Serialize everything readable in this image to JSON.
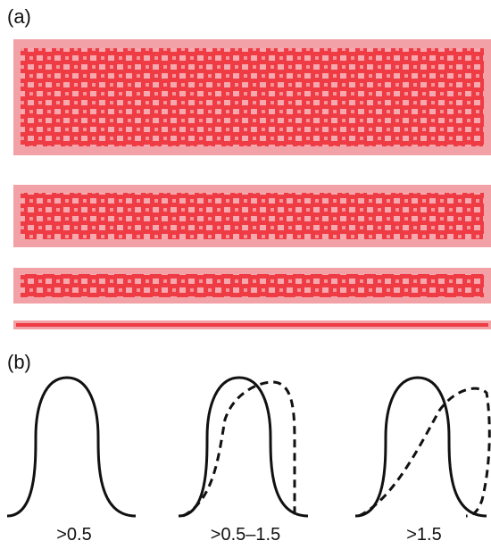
{
  "panel_a": {
    "label": "(a)"
  },
  "panel_b": {
    "label": "(b)",
    "captions": [
      ">0.5",
      ">0.5–1.5",
      ">1.5"
    ]
  },
  "colors": {
    "band_fill": "#ee3b44",
    "band_border": "#f2a2a6",
    "checker_light": "#f6a8ae"
  }
}
